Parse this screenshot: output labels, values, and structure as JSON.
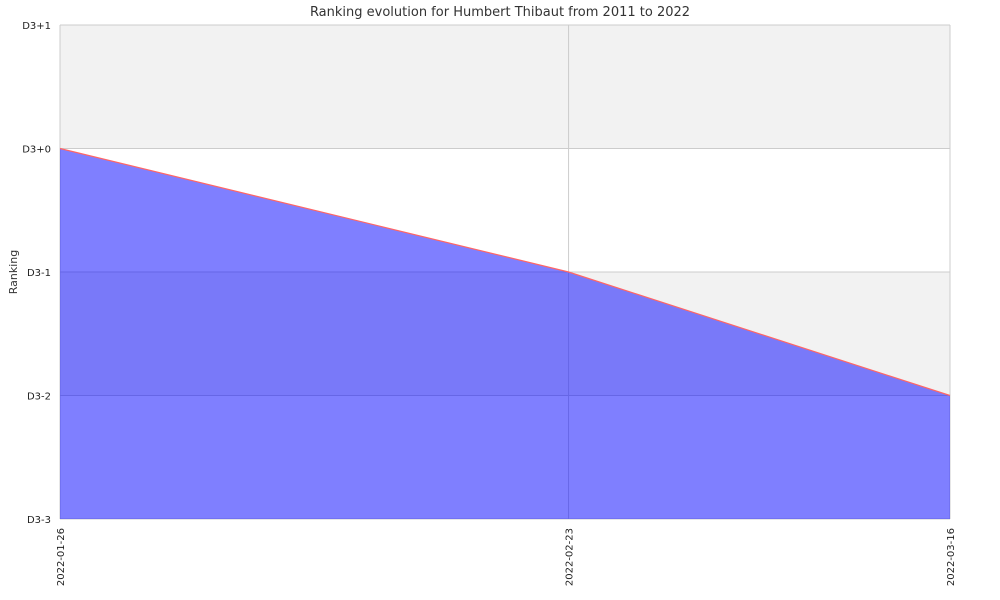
{
  "chart_data": {
    "type": "area",
    "title": "Ranking evolution for Humbert Thibaut from 2011 to 2022",
    "xlabel": "",
    "ylabel": "Ranking",
    "x": [
      "2022-01-26",
      "2022-02-23",
      "2022-03-16"
    ],
    "y_ticks": [
      "D3-3",
      "D3-2",
      "D3-1",
      "D3+0",
      "D3+1"
    ],
    "ylim": [
      "D3-3",
      "D3+1"
    ],
    "series": [
      {
        "values": [
          "D3+0",
          "D3-1",
          "D3-2"
        ]
      }
    ],
    "grid": true,
    "colors": {
      "fill": "#0000ff",
      "line": "#ff6666",
      "band": "#f2f2f2",
      "grid": "#cccccc"
    }
  }
}
